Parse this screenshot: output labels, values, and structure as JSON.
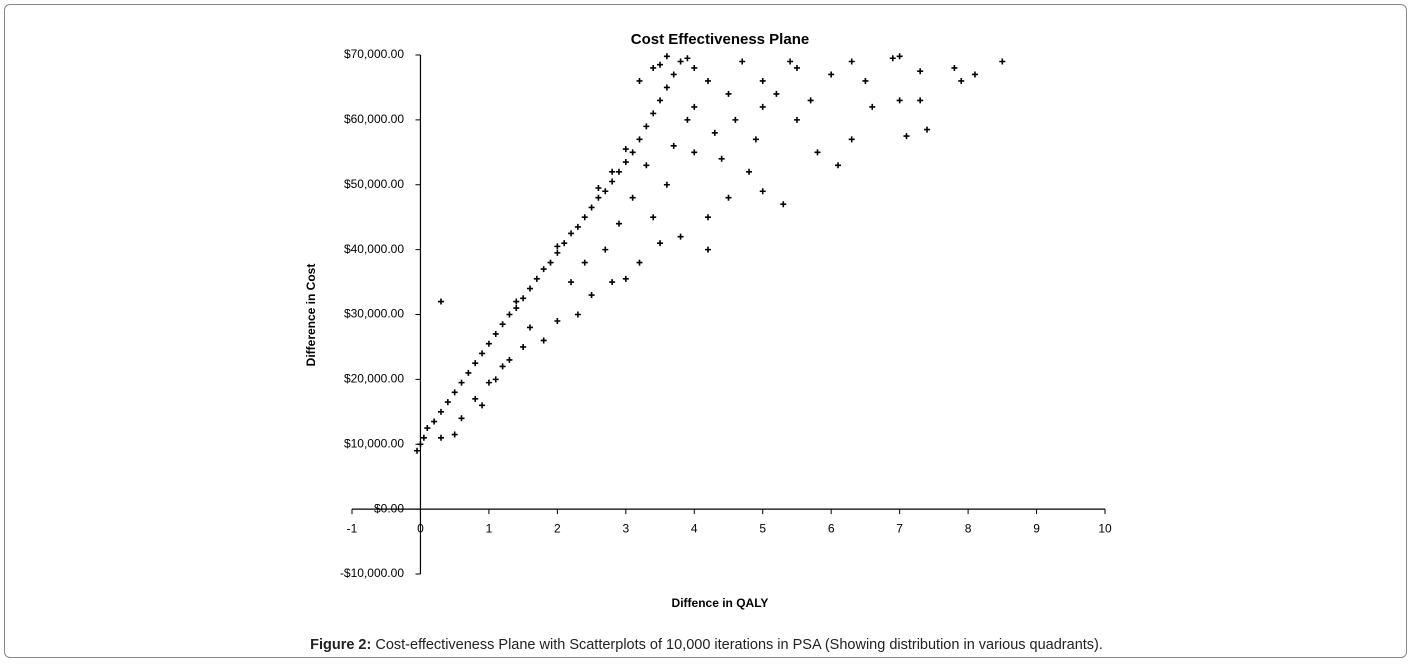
{
  "chart_data": {
    "type": "scatter",
    "title": "Cost Effectiveness Plane",
    "x_label": "Diffence in QALY",
    "y_label": "Difference in Cost",
    "xlim": [
      -1,
      10
    ],
    "xticks": [
      -1,
      0,
      1,
      2,
      3,
      4,
      5,
      6,
      7,
      8,
      9,
      10
    ],
    "ylim": [
      -10000,
      70000
    ],
    "yticks": [
      {
        "value": -10000,
        "label": "-$10,000.00"
      },
      {
        "value": 0,
        "label": "$0.00"
      },
      {
        "value": 10000,
        "label": "$10,000.00"
      },
      {
        "value": 20000,
        "label": "$20,000.00"
      },
      {
        "value": 30000,
        "label": "$30,000.00"
      },
      {
        "value": 40000,
        "label": "$40,000.00"
      },
      {
        "value": 50000,
        "label": "$50,000.00"
      },
      {
        "value": 60000,
        "label": "$60,000.00"
      },
      {
        "value": 70000,
        "label": "$70,000.00"
      }
    ],
    "grid": false,
    "color": "#000000",
    "x": [
      0,
      0.05,
      0.1,
      0.2,
      0.3,
      0.4,
      0.5,
      0.6,
      0.7,
      0.8,
      0.9,
      1.0,
      1.1,
      1.2,
      1.3,
      1.4,
      1.5,
      1.6,
      1.7,
      1.8,
      1.9,
      2.0,
      2.1,
      2.2,
      2.3,
      2.4,
      2.5,
      2.6,
      2.7,
      2.8,
      2.9,
      3.0,
      3.1,
      3.2,
      3.3,
      3.4,
      3.5,
      3.6,
      3.7,
      3.8,
      3.9,
      4.0,
      3.6,
      3.4,
      3.2,
      0.3,
      0.5,
      0.8,
      1.0,
      1.2,
      1.5,
      1.8,
      2.0,
      2.3,
      2.5,
      2.8,
      3.0,
      3.2,
      3.5,
      3.8,
      4.2,
      4.5,
      5.0,
      5.3,
      4.8,
      4.0,
      4.3,
      4.6,
      5.0,
      5.5,
      5.8,
      6.1,
      6.3,
      5.7,
      6.0,
      6.5,
      7.0,
      7.1,
      7.3,
      7.4,
      7.8,
      7.9,
      8.1,
      8.5,
      6.9,
      7.3,
      6.3,
      5.5,
      5.0,
      4.5,
      4.7,
      0.3,
      -0.05,
      1.3,
      2.2,
      2.7,
      3.4,
      3.6,
      4.2,
      4.0,
      4.2,
      3.9,
      3.3,
      1.1,
      0.6,
      0.9,
      1.6,
      2.4,
      2.9,
      3.1,
      3.7,
      4.4,
      4.9,
      5.2,
      5.4,
      6.6,
      7.0,
      3.5,
      3.0,
      2.8,
      2.6,
      2.0,
      1.4
    ],
    "y": [
      10000,
      11000,
      12500,
      13500,
      15000,
      16500,
      18000,
      19500,
      21000,
      22500,
      24000,
      25500,
      27000,
      28500,
      30000,
      31000,
      32500,
      34000,
      35500,
      37000,
      38000,
      39500,
      41000,
      42500,
      43500,
      45000,
      46500,
      48000,
      49000,
      50500,
      52000,
      53500,
      55000,
      57000,
      59000,
      61000,
      63000,
      65000,
      67000,
      69000,
      69500,
      68000,
      69800,
      68000,
      66000,
      11000,
      11500,
      17000,
      19500,
      22000,
      25000,
      26000,
      29000,
      30000,
      33000,
      35000,
      35500,
      38000,
      41000,
      42000,
      45000,
      48000,
      49000,
      47000,
      52000,
      55000,
      58000,
      60000,
      62000,
      60000,
      55000,
      53000,
      57000,
      63000,
      67000,
      66000,
      63000,
      57500,
      63000,
      58500,
      68000,
      66000,
      67000,
      69000,
      69500,
      67500,
      69000,
      68000,
      66000,
      64000,
      69000,
      32000,
      9000,
      23000,
      35000,
      40000,
      45000,
      50000,
      40000,
      62000,
      66000,
      60000,
      53000,
      20000,
      14000,
      16000,
      28000,
      38000,
      44000,
      48000,
      56000,
      54000,
      57000,
      64000,
      69000,
      62000,
      69800,
      68500,
      55500,
      52000,
      49500,
      40500,
      32000
    ]
  },
  "caption": {
    "label": "Figure 2:",
    "text": "Cost-effectiveness Plane with Scatterplots of 10,000 iterations in PSA (Showing distribution in various quadrants)."
  }
}
